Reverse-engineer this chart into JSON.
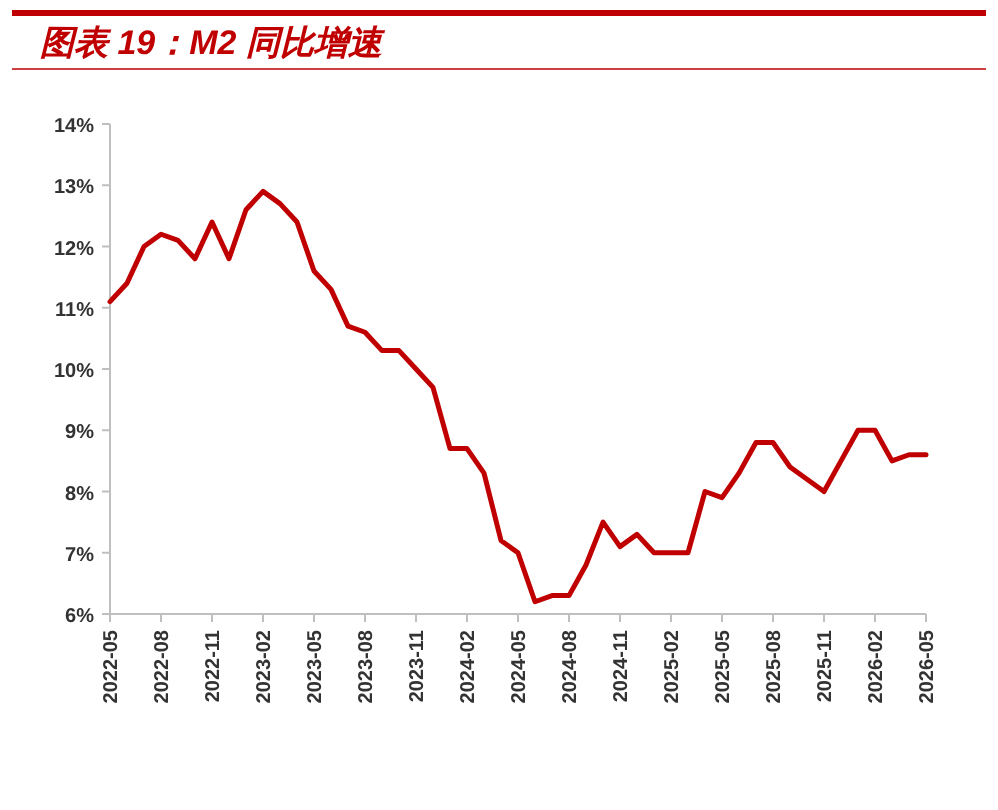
{
  "chart_data": {
    "type": "line",
    "title": "图表 19：M2 同比增速",
    "x": [
      "2022-05",
      "2022-06",
      "2022-07",
      "2022-08",
      "2022-09",
      "2022-10",
      "2022-11",
      "2022-12",
      "2023-01",
      "2023-02",
      "2023-03",
      "2023-04",
      "2023-05",
      "2023-06",
      "2023-07",
      "2023-08",
      "2023-09",
      "2023-10",
      "2023-11",
      "2023-12",
      "2024-01",
      "2024-02",
      "2024-03",
      "2024-04",
      "2024-05",
      "2024-06",
      "2024-07",
      "2024-08",
      "2024-09",
      "2024-10",
      "2024-11",
      "2024-12",
      "2025-01",
      "2025-02",
      "2025-03",
      "2025-04",
      "2025-05",
      "2025-06",
      "2025-07",
      "2025-08",
      "2025-09",
      "2025-10",
      "2025-11",
      "2025-12",
      "2026-01",
      "2026-02",
      "2026-03",
      "2026-04",
      "2026-05"
    ],
    "series": [
      {
        "color": "#c00000",
        "values": [
          11.1,
          11.4,
          12.0,
          12.2,
          12.1,
          11.8,
          12.4,
          11.8,
          12.6,
          12.9,
          12.7,
          12.4,
          11.6,
          11.3,
          10.7,
          10.6,
          10.3,
          10.3,
          10.0,
          9.7,
          8.7,
          8.7,
          8.3,
          7.2,
          7.0,
          6.2,
          6.3,
          6.3,
          6.8,
          7.5,
          7.1,
          7.3,
          7.0,
          7.0,
          7.0,
          8.0,
          7.9,
          8.3,
          8.8,
          8.8,
          8.4,
          8.2,
          8.0,
          8.5,
          9.0,
          9.0,
          8.5,
          8.6,
          8.6
        ]
      }
    ],
    "xlim": [
      "2022-05",
      "2026-05"
    ],
    "xticks": [
      "2022-05",
      "2022-08",
      "2022-11",
      "2023-02",
      "2023-05",
      "2023-08",
      "2023-11",
      "2024-02",
      "2024-05",
      "2024-08",
      "2024-11",
      "2025-02",
      "2025-05",
      "2025-08",
      "2025-11",
      "2026-02",
      "2026-05"
    ],
    "ylim": [
      6,
      14
    ],
    "yticks": [
      {
        "value": 6,
        "label": "6%"
      },
      {
        "value": 7,
        "label": "7%"
      },
      {
        "value": 8,
        "label": "8%"
      },
      {
        "value": 9,
        "label": "9%"
      },
      {
        "value": 10,
        "label": "10%"
      },
      {
        "value": 11,
        "label": "11%"
      },
      {
        "value": 12,
        "label": "12%"
      },
      {
        "value": 13,
        "label": "13%"
      },
      {
        "value": 14,
        "label": "14%"
      }
    ],
    "grid": false,
    "marker": "none",
    "line_style": "solid"
  }
}
